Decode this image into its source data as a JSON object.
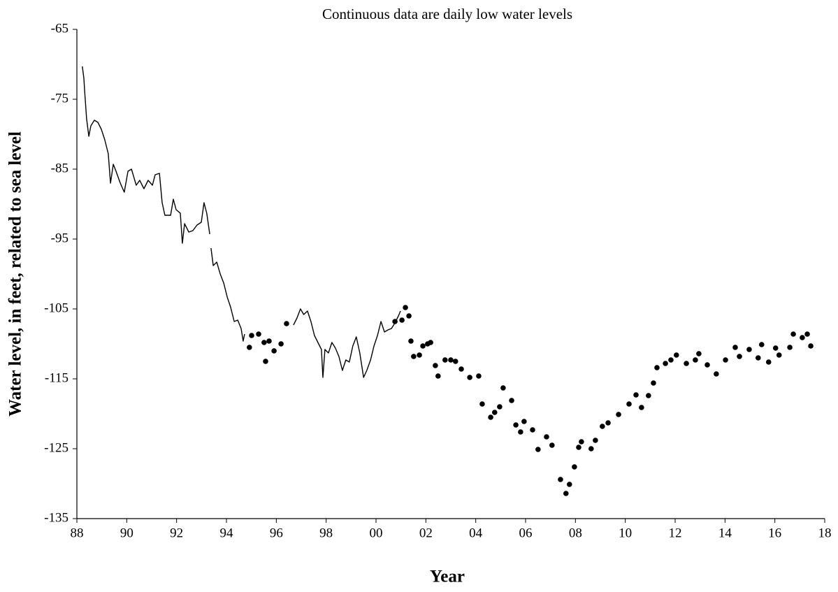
{
  "chart_data": {
    "type": "line",
    "title": "Continuous data are daily low water levels",
    "x_label": "Year",
    "y_label": "Water  level, in feet, related to sea level",
    "xlim": [
      1988,
      2018
    ],
    "ylim": [
      -135,
      -65
    ],
    "xticks": [
      {
        "value": 1988,
        "label": "88"
      },
      {
        "value": 1990,
        "label": "90"
      },
      {
        "value": 1992,
        "label": "92"
      },
      {
        "value": 1994,
        "label": "94"
      },
      {
        "value": 1996,
        "label": "96"
      },
      {
        "value": 1998,
        "label": "98"
      },
      {
        "value": 2000,
        "label": "00"
      },
      {
        "value": 2002,
        "label": "02"
      },
      {
        "value": 2004,
        "label": "04"
      },
      {
        "value": 2006,
        "label": "06"
      },
      {
        "value": 2008,
        "label": "08"
      },
      {
        "value": 2010,
        "label": "10"
      },
      {
        "value": 2012,
        "label": "12"
      },
      {
        "value": 2014,
        "label": "14"
      },
      {
        "value": 2016,
        "label": "16"
      },
      {
        "value": 2018,
        "label": "18"
      }
    ],
    "yticks": [
      -135,
      -125,
      -115,
      -105,
      -95,
      -85,
      -75,
      -65
    ],
    "series": [
      {
        "type": "line",
        "color": "#000000",
        "x": [
          1988.22,
          1988.28,
          1988.31,
          1988.39,
          1988.48,
          1988.56,
          1988.7,
          1988.84,
          1988.98,
          1989.12,
          1989.26,
          1989.35,
          1989.46,
          1989.57,
          1989.74,
          1989.9,
          1990.05,
          1990.19,
          1990.38,
          1990.52,
          1990.69,
          1990.86,
          1991.03,
          1991.14,
          1991.31,
          1991.42,
          1991.53,
          1991.76,
          1991.87,
          1991.98,
          1992.15,
          1992.23,
          1992.32,
          1992.49,
          1992.65,
          1992.82,
          1992.99,
          1993.1,
          1993.21,
          1993.33,
          1993.35,
          1993.38,
          1993.47,
          1993.61,
          1993.75,
          1993.89,
          1994.03,
          1994.17,
          1994.31,
          1994.45,
          1994.59,
          1994.67,
          1994.73,
          1995.7,
          1996.69,
          1996.83,
          1996.97,
          1997.1,
          1997.25,
          1997.39,
          1997.53,
          1997.67,
          1997.81,
          1997.87,
          1997.95,
          1998.09,
          1998.23,
          1998.37,
          1998.51,
          1998.65,
          1998.79,
          1998.93,
          1999.07,
          1999.21,
          1999.35,
          1999.5,
          1999.63,
          1999.78,
          1999.92,
          2000.06,
          2000.2,
          2000.34,
          2000.48,
          2000.62,
          2000.76,
          2000.9,
          2000.98
        ],
        "values": [
          -70.3,
          -72,
          -73.8,
          -77.8,
          -80.3,
          -78.8,
          -78,
          -78.3,
          -79.3,
          -80.8,
          -82.8,
          -87,
          -84.3,
          -85.3,
          -87,
          -88.3,
          -85.3,
          -85,
          -87.3,
          -86.6,
          -87.8,
          -86.6,
          -87.3,
          -85.8,
          -85.6,
          -89.8,
          -91.6,
          -91.6,
          -89.3,
          -90.8,
          -91.3,
          -95.6,
          -92.8,
          -94,
          -93.8,
          -93,
          -92.6,
          -89.8,
          -91.3,
          -94.3,
          null,
          -96.3,
          -98.8,
          -98.3,
          -100,
          -101.3,
          -103.3,
          -104.8,
          -106.8,
          -106.6,
          -107.8,
          -109.6,
          -108.6,
          null,
          -107.3,
          -106.3,
          -105,
          -105.8,
          -105.3,
          -106.8,
          -108.8,
          -109.8,
          -110.8,
          -114.8,
          -110.8,
          -111.3,
          -109.8,
          -110.6,
          -111.8,
          -113.8,
          -112.3,
          -112.6,
          -110.3,
          -109,
          -111.3,
          -114.8,
          -113.8,
          -112.3,
          -110.3,
          -108.8,
          -106.8,
          -108.3,
          -108,
          -107.8,
          -107,
          -106,
          -105.3
        ]
      },
      {
        "type": "scatter",
        "color": "#000000",
        "x": [
          1994.92,
          1995.01,
          1995.29,
          1995.51,
          1995.57,
          1995.71,
          1995.91,
          1996.19,
          1996.41,
          2000.76,
          2001.04,
          2001.18,
          2001.32,
          2001.4,
          2001.51,
          2001.74,
          2001.88,
          2002.07,
          2002.19,
          2002.38,
          2002.49,
          2002.77,
          2003.0,
          2003.19,
          2003.42,
          2003.76,
          2004.12,
          2004.26,
          2004.6,
          2004.76,
          2004.96,
          2005.1,
          2005.44,
          2005.61,
          2005.8,
          2005.94,
          2006.28,
          2006.5,
          2006.84,
          2007.06,
          2007.4,
          2007.62,
          2007.76,
          2007.96,
          2008.13,
          2008.24,
          2008.63,
          2008.8,
          2009.08,
          2009.31,
          2009.73,
          2010.15,
          2010.43,
          2010.65,
          2010.93,
          2011.13,
          2011.27,
          2011.61,
          2011.83,
          2012.05,
          2012.45,
          2012.81,
          2012.95,
          2013.29,
          2013.65,
          2014.02,
          2014.41,
          2014.58,
          2014.97,
          2015.33,
          2015.47,
          2015.75,
          2016.03,
          2016.17,
          2016.6,
          2016.74,
          2017.1,
          2017.3,
          2017.44
        ],
        "values": [
          -110.5,
          -108.8,
          -108.6,
          -109.8,
          -112.5,
          -109.6,
          -111,
          -110,
          -107.1,
          -106.8,
          -106.6,
          -104.8,
          -106,
          -109.6,
          -111.8,
          -111.6,
          -110.3,
          -110,
          -109.8,
          -113.1,
          -114.6,
          -112.3,
          -112.3,
          -112.5,
          -113.6,
          -114.8,
          -114.6,
          -118.6,
          -120.5,
          -119.8,
          -119,
          -116.3,
          -118.1,
          -121.6,
          -122.6,
          -121.1,
          -122.3,
          -125.1,
          -123.3,
          -124.5,
          -129.4,
          -131.4,
          -130.1,
          -127.6,
          -124.8,
          -124,
          -125,
          -123.8,
          -121.8,
          -121.3,
          -120.1,
          -118.6,
          -117.3,
          -119.1,
          -117.4,
          -115.6,
          -113.4,
          -112.8,
          -112.3,
          -111.6,
          -112.8,
          -112.3,
          -111.4,
          -113,
          -114.3,
          -112.3,
          -110.5,
          -111.8,
          -110.8,
          -112,
          -110.1,
          -112.6,
          -110.6,
          -111.6,
          -110.5,
          -108.6,
          -109.1,
          -108.6,
          -110.3
        ]
      }
    ]
  }
}
